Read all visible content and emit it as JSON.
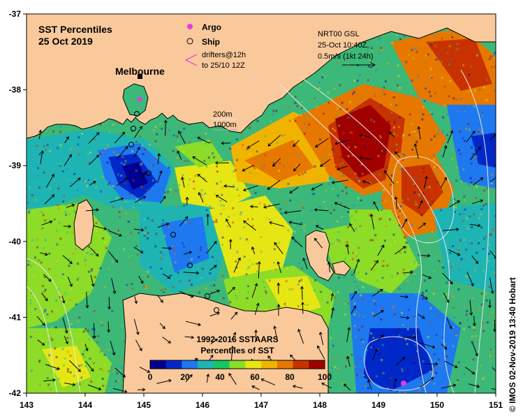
{
  "map": {
    "title": "SST Percentiles",
    "date": "25 Oct 2019",
    "place_label": "Melbourne",
    "credit": "© IMOS 02-Nov-2019 13:40 Hobart",
    "legend": {
      "argo_label": "Argo",
      "ship_label": "Ship",
      "drifters_line1": "drifters@12h",
      "drifters_line2": "to 25/10 12Z",
      "argo_color": "#e23ce0",
      "drifter_color": "#e23ce0"
    },
    "current_key": {
      "line1": "NRT00 GSL",
      "line2": "25-Oct 10:40Z",
      "line3": "0.5m/s (1kt 24h)"
    },
    "contours": {
      "c200": "200m",
      "c1000": "1000m"
    },
    "colorbar": {
      "title1": "1992-2016 SSTAARS",
      "title2": "Percentiles of SST",
      "tick_labels": [
        "0",
        "20",
        "40",
        "60",
        "80",
        "100"
      ],
      "colors": [
        "#000090",
        "#0028c8",
        "#1e78f0",
        "#1eb4b4",
        "#14c864",
        "#8cdc28",
        "#e6e614",
        "#f0b400",
        "#e67800",
        "#c83200",
        "#a00000"
      ]
    },
    "axes": {
      "lon_labels": [
        "143",
        "144",
        "145",
        "146",
        "147",
        "148",
        "149",
        "150",
        "151"
      ],
      "lat_labels": [
        "-37",
        "-38",
        "-39",
        "-40",
        "-41",
        "-42"
      ],
      "lon_range": [
        143,
        151
      ],
      "lat_range": [
        -42,
        -37
      ]
    },
    "land_color": "#f9c99c",
    "ocean_color": "#3cb878"
  }
}
